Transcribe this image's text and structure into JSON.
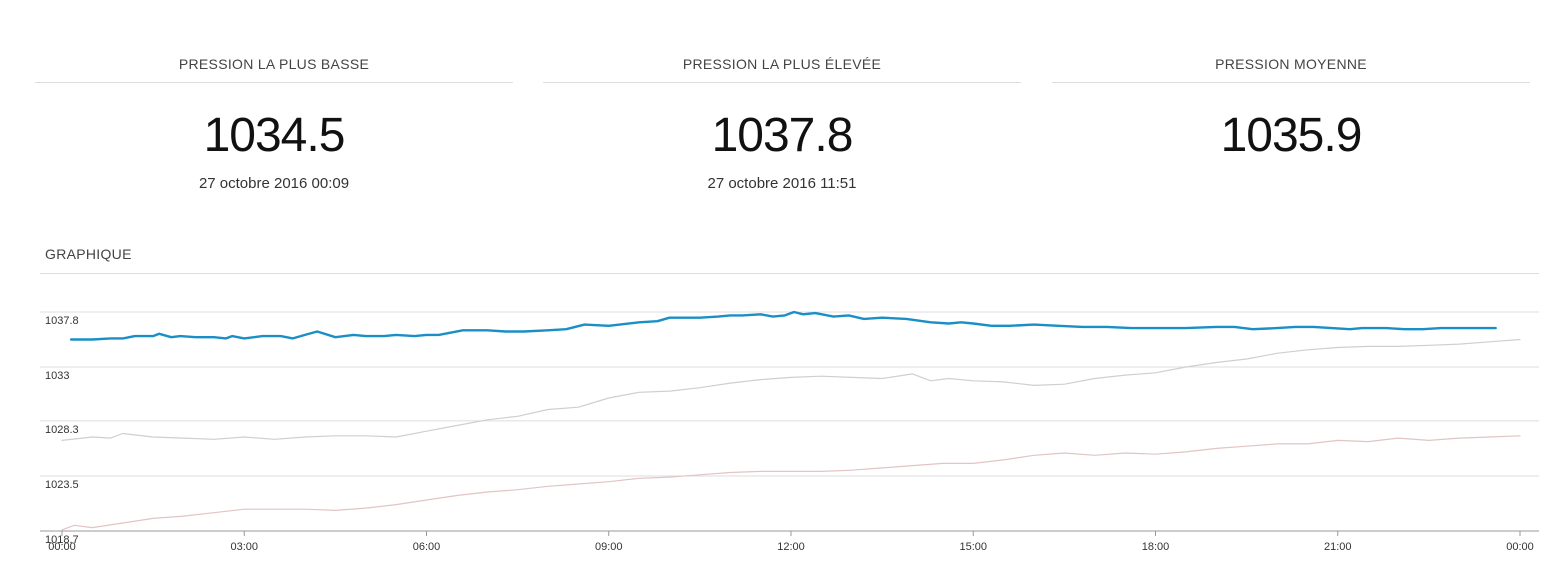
{
  "stats": [
    {
      "title": "PRESSION LA PLUS BASSE",
      "value": "1034.5",
      "date": "27 octobre 2016 00:09"
    },
    {
      "title": "PRESSION LA PLUS ÉLEVÉE",
      "value": "1037.8",
      "date": "27 octobre 2016 11:51"
    },
    {
      "title": "PRESSION MOYENNE",
      "value": "1035.9",
      "date": ""
    }
  ],
  "chart_title": "GRAPHIQUE",
  "chart_data": {
    "type": "line",
    "title": "",
    "xlabel": "",
    "ylabel": "",
    "xlim": [
      0,
      24
    ],
    "ylim": [
      1018.7,
      1039.5
    ],
    "y_ticks": [
      1018.7,
      1023.5,
      1028.3,
      1033,
      1037.8
    ],
    "y_tick_labels": [
      "1018.7",
      "1023.5",
      "1028.3",
      "1033",
      "1037.8"
    ],
    "x_ticks": [
      0,
      3,
      6,
      9,
      12,
      15,
      18,
      21,
      24
    ],
    "x_tick_labels": [
      "00:00",
      "03:00",
      "06:00",
      "09:00",
      "12:00",
      "15:00",
      "18:00",
      "21:00",
      "00:00"
    ],
    "grid": true,
    "series": [
      {
        "color": "#1a8fc6",
        "x": [
          0.15,
          0.5,
          0.8,
          1.0,
          1.2,
          1.5,
          1.6,
          1.8,
          1.95,
          2.2,
          2.5,
          2.7,
          2.8,
          3.0,
          3.3,
          3.6,
          3.8,
          4.0,
          4.2,
          4.5,
          4.8,
          5.0,
          5.3,
          5.5,
          5.8,
          6.0,
          6.2,
          6.6,
          7.0,
          7.3,
          7.6,
          8.0,
          8.3,
          8.6,
          9.0,
          9.5,
          9.8,
          10.0,
          10.2,
          10.5,
          10.8,
          11.0,
          11.2,
          11.5,
          11.7,
          11.9,
          12.05,
          12.2,
          12.4,
          12.7,
          12.95,
          13.2,
          13.5,
          13.9,
          14.3,
          14.6,
          14.8,
          15.0,
          15.3,
          15.6,
          16.0,
          16.4,
          16.8,
          17.2,
          17.6,
          18.0,
          18.5,
          19.0,
          19.3,
          19.6,
          20.0,
          20.3,
          20.6,
          20.9,
          21.2,
          21.4,
          21.6,
          21.8,
          22.1,
          22.4,
          22.7,
          23.0,
          23.3,
          23.6
        ],
        "y": [
          1035.4,
          1035.4,
          1035.5,
          1035.5,
          1035.7,
          1035.7,
          1035.9,
          1035.6,
          1035.7,
          1035.6,
          1035.6,
          1035.5,
          1035.7,
          1035.5,
          1035.7,
          1035.7,
          1035.5,
          1035.8,
          1036.1,
          1035.6,
          1035.8,
          1035.7,
          1035.7,
          1035.8,
          1035.7,
          1035.8,
          1035.8,
          1036.2,
          1036.2,
          1036.1,
          1036.1,
          1036.2,
          1036.3,
          1036.7,
          1036.6,
          1036.9,
          1037.0,
          1037.3,
          1037.3,
          1037.3,
          1037.4,
          1037.5,
          1037.5,
          1037.6,
          1037.4,
          1037.5,
          1037.8,
          1037.6,
          1037.7,
          1037.4,
          1037.5,
          1037.2,
          1037.3,
          1037.2,
          1036.9,
          1036.8,
          1036.9,
          1036.8,
          1036.6,
          1036.6,
          1036.7,
          1036.6,
          1036.5,
          1036.5,
          1036.4,
          1036.4,
          1036.4,
          1036.5,
          1036.5,
          1036.3,
          1036.4,
          1036.5,
          1036.5,
          1036.4,
          1036.3,
          1036.4,
          1036.4,
          1036.4,
          1036.3,
          1036.3,
          1036.4,
          1036.4,
          1036.4,
          1036.4
        ]
      },
      {
        "color": "#cfcfcf",
        "x": [
          0,
          0.5,
          0.8,
          1.0,
          1.5,
          2.0,
          2.5,
          3.0,
          3.5,
          4.0,
          4.5,
          5.0,
          5.5,
          6.0,
          6.5,
          7.0,
          7.5,
          8.0,
          8.5,
          9.0,
          9.5,
          10.0,
          10.5,
          11.0,
          11.5,
          12.0,
          12.5,
          13.0,
          13.5,
          14.0,
          14.3,
          14.6,
          15.0,
          15.5,
          16.0,
          16.5,
          17.0,
          17.5,
          18.0,
          18.5,
          19.0,
          19.5,
          20.0,
          20.5,
          21.0,
          21.5,
          22.0,
          22.5,
          23.0,
          23.5,
          24.0
        ],
        "y": [
          1026.6,
          1026.9,
          1026.8,
          1027.2,
          1026.9,
          1026.8,
          1026.7,
          1026.9,
          1026.7,
          1026.9,
          1027.0,
          1027.0,
          1026.9,
          1027.4,
          1027.9,
          1028.4,
          1028.7,
          1029.3,
          1029.5,
          1030.3,
          1030.8,
          1030.9,
          1031.2,
          1031.6,
          1031.9,
          1032.1,
          1032.2,
          1032.1,
          1032.0,
          1032.4,
          1031.8,
          1032.0,
          1031.8,
          1031.7,
          1031.4,
          1031.5,
          1032.0,
          1032.3,
          1032.5,
          1033.0,
          1033.4,
          1033.7,
          1034.2,
          1034.5,
          1034.7,
          1034.8,
          1034.8,
          1034.9,
          1035.0,
          1035.2,
          1035.4
        ]
      },
      {
        "color": "#e2c4c4",
        "x": [
          0,
          0.2,
          0.5,
          1.0,
          1.5,
          2.0,
          2.5,
          3.0,
          3.5,
          4.0,
          4.5,
          5.0,
          5.5,
          6.0,
          6.5,
          7.0,
          7.5,
          8.0,
          8.5,
          9.0,
          9.5,
          10.0,
          10.5,
          11.0,
          11.5,
          12.0,
          12.5,
          13.0,
          13.5,
          14.0,
          14.5,
          15.0,
          15.5,
          16.0,
          16.5,
          17.0,
          17.5,
          18.0,
          18.5,
          19.0,
          19.5,
          20.0,
          20.5,
          21.0,
          21.5,
          22.0,
          22.5,
          23.0,
          23.5,
          24.0
        ],
        "y": [
          1018.8,
          1019.2,
          1019.0,
          1019.4,
          1019.8,
          1020.0,
          1020.3,
          1020.6,
          1020.6,
          1020.6,
          1020.5,
          1020.7,
          1021.0,
          1021.4,
          1021.8,
          1022.1,
          1022.3,
          1022.6,
          1022.8,
          1023.0,
          1023.3,
          1023.4,
          1023.6,
          1023.8,
          1023.9,
          1023.9,
          1023.9,
          1024.0,
          1024.2,
          1024.4,
          1024.6,
          1024.6,
          1024.9,
          1025.3,
          1025.5,
          1025.3,
          1025.5,
          1025.4,
          1025.6,
          1025.9,
          1026.1,
          1026.3,
          1026.3,
          1026.6,
          1026.5,
          1026.8,
          1026.6,
          1026.8,
          1026.9,
          1027.0
        ]
      }
    ]
  }
}
